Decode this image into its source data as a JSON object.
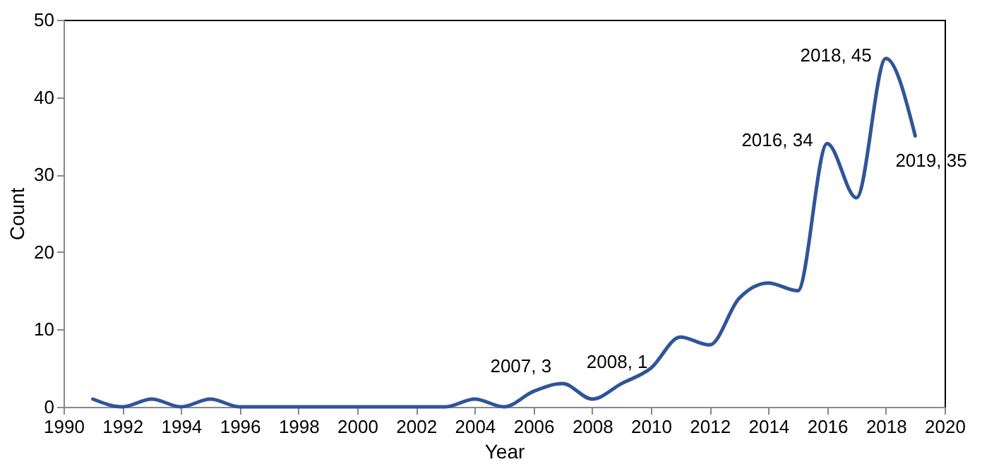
{
  "chart_data": {
    "type": "line",
    "xlabel": "Year",
    "ylabel": "Count",
    "x": [
      1991,
      1992,
      1993,
      1994,
      1995,
      1996,
      1997,
      1998,
      1999,
      2000,
      2001,
      2002,
      2003,
      2004,
      2005,
      2006,
      2007,
      2008,
      2009,
      2010,
      2011,
      2012,
      2013,
      2014,
      2015,
      2016,
      2017,
      2018,
      2019
    ],
    "series": [
      {
        "color": "#2f5597",
        "values": [
          1,
          0,
          1,
          0,
          1,
          0,
          0,
          0,
          0,
          0,
          0,
          0,
          0,
          1,
          0,
          2,
          3,
          1,
          3,
          5,
          9,
          8,
          14,
          16,
          15,
          34,
          27,
          45,
          35
        ]
      }
    ],
    "xlim": [
      1990,
      2020
    ],
    "xticks": [
      1990,
      1992,
      1994,
      1996,
      1998,
      2000,
      2002,
      2004,
      2006,
      2008,
      2010,
      2012,
      2014,
      2016,
      2018,
      2020
    ],
    "ylim": [
      0,
      50
    ],
    "yticks": [
      0,
      10,
      20,
      30,
      40,
      50
    ],
    "grid": false,
    "marker": "none",
    "line_style": "solid",
    "annotations": [
      {
        "text": "2007, 3",
        "x": 2007,
        "y": 3
      },
      {
        "text": "2008, 1",
        "x": 2008,
        "y": 1
      },
      {
        "text": "2016, 34",
        "x": 2016,
        "y": 34
      },
      {
        "text": "2018, 45",
        "x": 2018,
        "y": 45
      },
      {
        "text": "2019, 35",
        "x": 2019,
        "y": 35
      }
    ]
  }
}
